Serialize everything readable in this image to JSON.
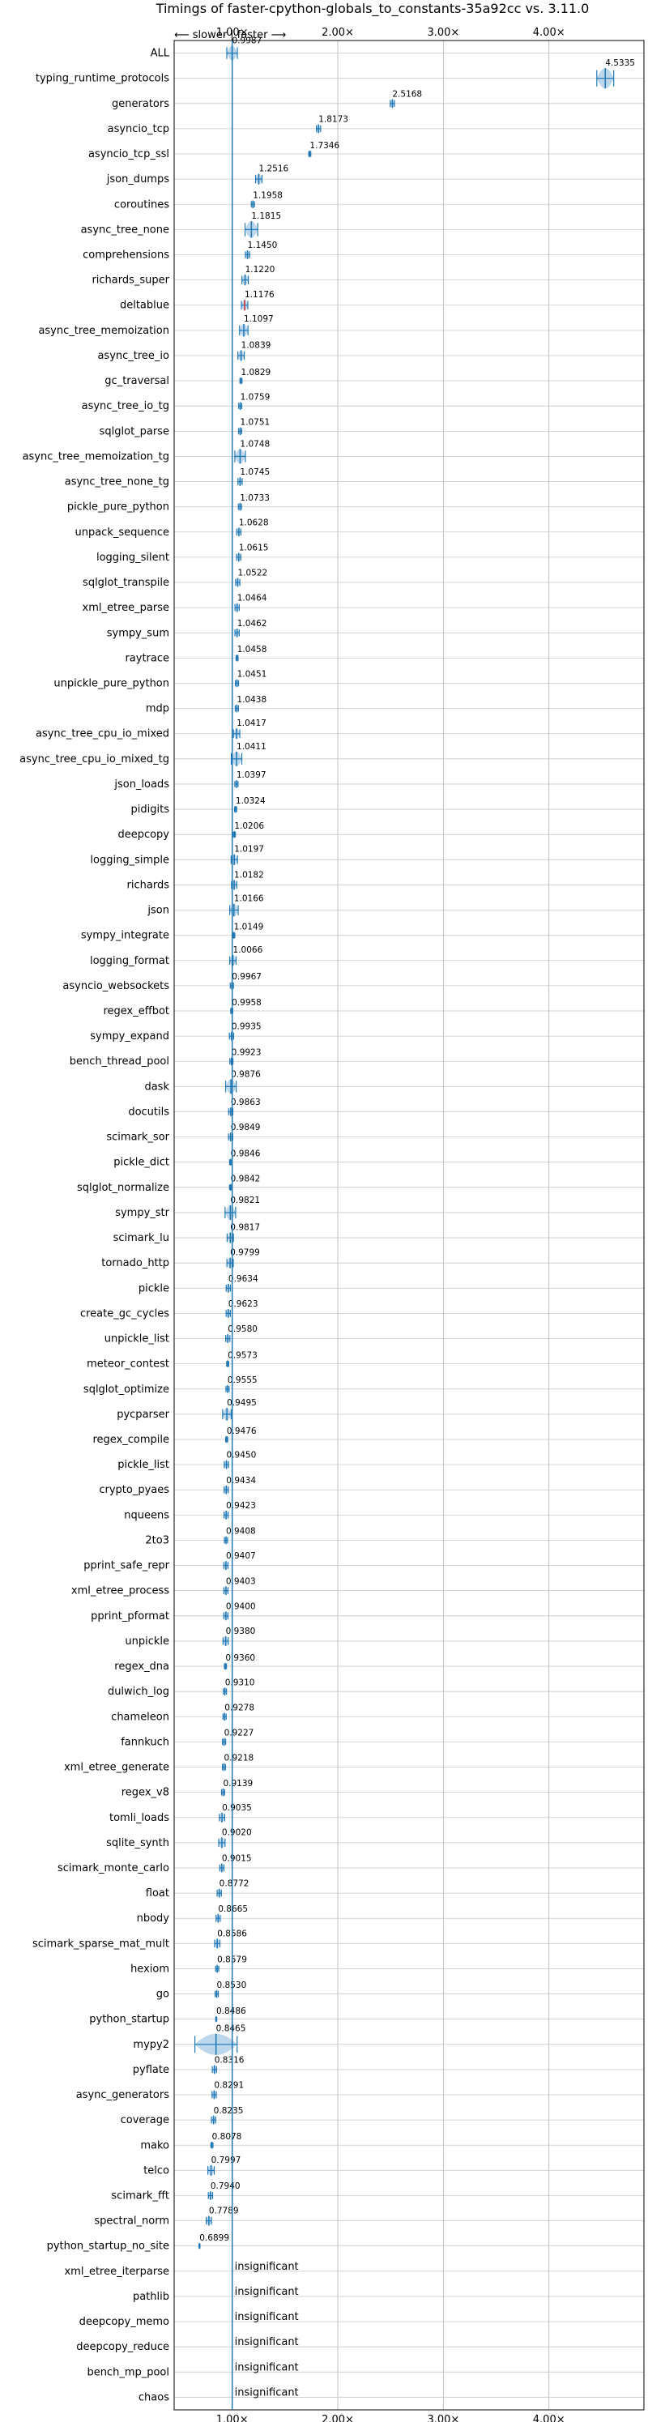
{
  "chart_data": {
    "type": "violin",
    "title": "Timings of faster-cpython-globals_to_constants-35a92cc vs. 3.11.0",
    "direction_hint": "⟵ slower | faster ⟶",
    "x_ticks": [
      "1.00×",
      "2.00×",
      "3.00×",
      "4.00×"
    ],
    "x_tick_values": [
      1,
      2,
      3,
      4
    ],
    "xlim": [
      0.45,
      4.9
    ],
    "reference_line": 1.0,
    "grid": true,
    "categories": [
      "ALL",
      "typing_runtime_protocols",
      "generators",
      "asyncio_tcp",
      "asyncio_tcp_ssl",
      "json_dumps",
      "coroutines",
      "async_tree_none",
      "comprehensions",
      "richards_super",
      "deltablue",
      "async_tree_memoization",
      "async_tree_io",
      "gc_traversal",
      "async_tree_io_tg",
      "sqlglot_parse",
      "async_tree_memoization_tg",
      "async_tree_none_tg",
      "pickle_pure_python",
      "unpack_sequence",
      "logging_silent",
      "sqlglot_transpile",
      "xml_etree_parse",
      "sympy_sum",
      "raytrace",
      "unpickle_pure_python",
      "mdp",
      "async_tree_cpu_io_mixed",
      "async_tree_cpu_io_mixed_tg",
      "json_loads",
      "pidigits",
      "deepcopy",
      "logging_simple",
      "richards",
      "json",
      "sympy_integrate",
      "logging_format",
      "asyncio_websockets",
      "regex_effbot",
      "sympy_expand",
      "bench_thread_pool",
      "dask",
      "docutils",
      "scimark_sor",
      "pickle_dict",
      "sqlglot_normalize",
      "sympy_str",
      "scimark_lu",
      "tornado_http",
      "pickle",
      "create_gc_cycles",
      "unpickle_list",
      "meteor_contest",
      "sqlglot_optimize",
      "pycparser",
      "regex_compile",
      "pickle_list",
      "crypto_pyaes",
      "nqueens",
      "2to3",
      "pprint_safe_repr",
      "xml_etree_process",
      "pprint_pformat",
      "unpickle",
      "regex_dna",
      "dulwich_log",
      "chameleon",
      "fannkuch",
      "xml_etree_generate",
      "regex_v8",
      "tomli_loads",
      "sqlite_synth",
      "scimark_monte_carlo",
      "float",
      "nbody",
      "scimark_sparse_mat_mult",
      "hexiom",
      "go",
      "python_startup",
      "mypy2",
      "pyflate",
      "async_generators",
      "coverage",
      "mako",
      "telco",
      "scimark_fft",
      "spectral_norm",
      "python_startup_no_site",
      "xml_etree_iterparse",
      "pathlib",
      "deepcopy_memo",
      "deepcopy_reduce",
      "bench_mp_pool",
      "chaos"
    ],
    "labels": [
      "0.9987",
      "4.5335",
      "2.5168",
      "1.8173",
      "1.7346",
      "1.2516",
      "1.1958",
      "1.1815",
      "1.1450",
      "1.1220",
      "1.1176",
      "1.1097",
      "1.0839",
      "1.0829",
      "1.0759",
      "1.0751",
      "1.0748",
      "1.0745",
      "1.0733",
      "1.0628",
      "1.0615",
      "1.0522",
      "1.0464",
      "1.0462",
      "1.0458",
      "1.0451",
      "1.0438",
      "1.0417",
      "1.0411",
      "1.0397",
      "1.0324",
      "1.0206",
      "1.0197",
      "1.0182",
      "1.0166",
      "1.0149",
      "1.0066",
      "0.9967",
      "0.9958",
      "0.9935",
      "0.9923",
      "0.9876",
      "0.9863",
      "0.9849",
      "0.9846",
      "0.9842",
      "0.9821",
      "0.9817",
      "0.9799",
      "0.9634",
      "0.9623",
      "0.9580",
      "0.9573",
      "0.9555",
      "0.9495",
      "0.9476",
      "0.9450",
      "0.9434",
      "0.9423",
      "0.9408",
      "0.9407",
      "0.9403",
      "0.9400",
      "0.9380",
      "0.9360",
      "0.9310",
      "0.9278",
      "0.9227",
      "0.9218",
      "0.9139",
      "0.9035",
      "0.9020",
      "0.9015",
      "0.8772",
      "0.8665",
      "0.8586",
      "0.8579",
      "0.8530",
      "0.8486",
      "0.8465",
      "0.8316",
      "0.8291",
      "0.8235",
      "0.8078",
      "0.7997",
      "0.7940",
      "0.7789",
      "0.6899",
      "insignificant",
      "insignificant",
      "insignificant",
      "insignificant",
      "insignificant",
      "insignificant"
    ],
    "values": [
      0.9987,
      4.5335,
      2.5168,
      1.8173,
      1.7346,
      1.2516,
      1.1958,
      1.1815,
      1.145,
      1.122,
      1.1176,
      1.1097,
      1.0839,
      1.0829,
      1.0759,
      1.0751,
      1.0748,
      1.0745,
      1.0733,
      1.0628,
      1.0615,
      1.0522,
      1.0464,
      1.0462,
      1.0458,
      1.0451,
      1.0438,
      1.0417,
      1.0411,
      1.0397,
      1.0324,
      1.0206,
      1.0197,
      1.0182,
      1.0166,
      1.0149,
      1.0066,
      0.9967,
      0.9958,
      0.9935,
      0.9923,
      0.9876,
      0.9863,
      0.9849,
      0.9846,
      0.9842,
      0.9821,
      0.9817,
      0.9799,
      0.9634,
      0.9623,
      0.958,
      0.9573,
      0.9555,
      0.9495,
      0.9476,
      0.945,
      0.9434,
      0.9423,
      0.9408,
      0.9407,
      0.9403,
      0.94,
      0.938,
      0.936,
      0.931,
      0.9278,
      0.9227,
      0.9218,
      0.9139,
      0.9035,
      0.902,
      0.9015,
      0.8772,
      0.8665,
      0.8586,
      0.8579,
      0.853,
      0.8486,
      0.8465,
      0.8316,
      0.8291,
      0.8235,
      0.8078,
      0.7997,
      0.794,
      0.7789,
      0.6899,
      null,
      null,
      null,
      null,
      null,
      null
    ],
    "spreads": [
      0.05,
      0.08,
      0.02,
      0.02,
      0.01,
      0.03,
      0.015,
      0.06,
      0.02,
      0.03,
      0.03,
      0.04,
      0.03,
      0.01,
      0.015,
      0.015,
      0.05,
      0.02,
      0.015,
      0.02,
      0.02,
      0.02,
      0.02,
      0.02,
      0.01,
      0.015,
      0.015,
      0.03,
      0.05,
      0.015,
      0.01,
      0.01,
      0.03,
      0.025,
      0.04,
      0.01,
      0.03,
      0.015,
      0.01,
      0.02,
      0.015,
      0.05,
      0.02,
      0.02,
      0.01,
      0.01,
      0.05,
      0.03,
      0.03,
      0.02,
      0.02,
      0.02,
      0.01,
      0.015,
      0.04,
      0.01,
      0.02,
      0.02,
      0.02,
      0.015,
      0.02,
      0.02,
      0.02,
      0.025,
      0.01,
      0.015,
      0.015,
      0.015,
      0.015,
      0.015,
      0.025,
      0.03,
      0.02,
      0.02,
      0.02,
      0.025,
      0.015,
      0.015,
      0.005,
      0.2,
      0.02,
      0.02,
      0.02,
      0.01,
      0.03,
      0.02,
      0.025,
      0.005,
      null,
      null,
      null,
      null,
      null,
      null
    ],
    "marker_color": "#1f77b4",
    "violin_color": "#a6c8e6",
    "highlight_color": "#d62728"
  }
}
